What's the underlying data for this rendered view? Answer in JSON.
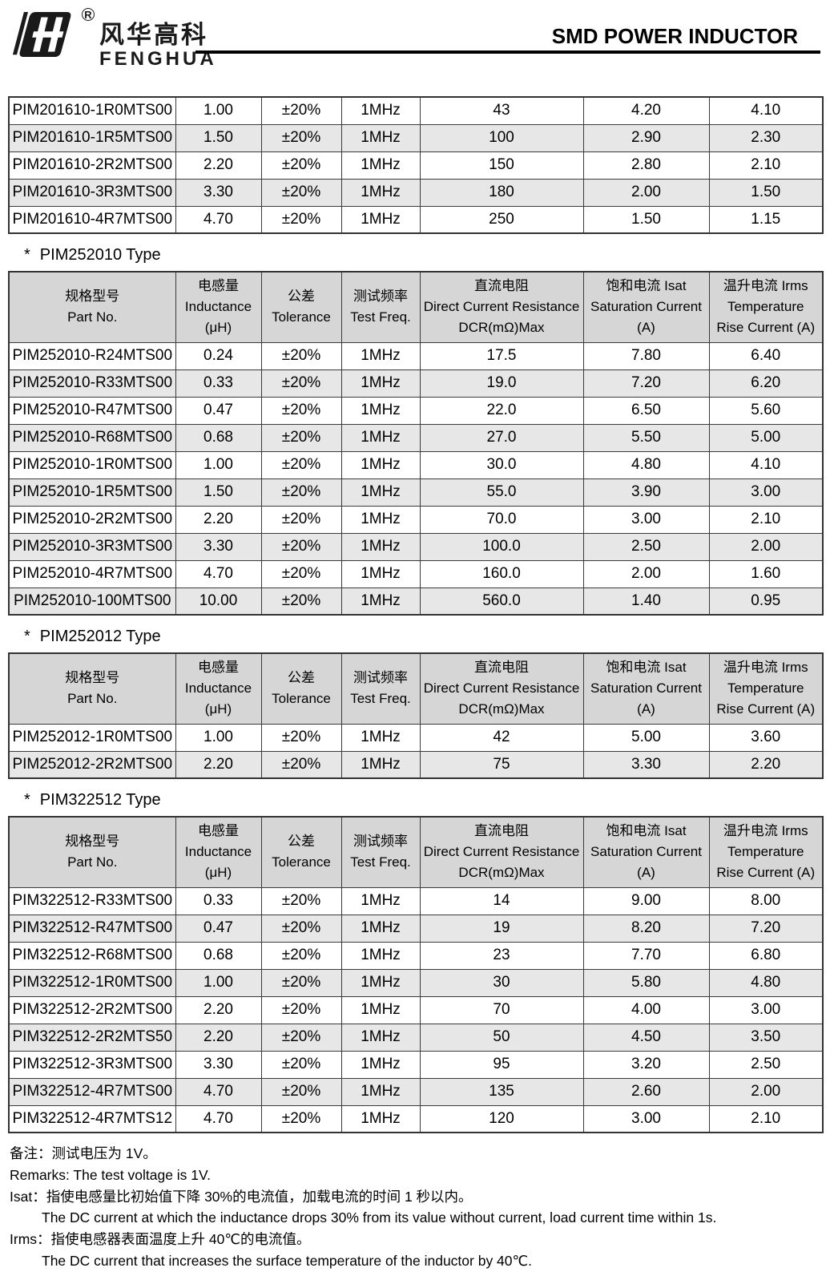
{
  "header": {
    "logo_cn": "风华高科",
    "logo_en": "FENGHUA",
    "registered_mark": "R",
    "title": "SMD POWER INDUCTOR"
  },
  "columns": [
    {
      "cn": "规格型号",
      "en": "Part No.",
      "unit": ""
    },
    {
      "cn": "电感量",
      "en": "Inductance",
      "unit": "(μH)"
    },
    {
      "cn": "公差",
      "en": "Tolerance",
      "unit": ""
    },
    {
      "cn": "测试频率",
      "en": "Test Freq.",
      "unit": ""
    },
    {
      "cn": "直流电阻",
      "en": "Direct Current Resistance",
      "unit": "DCR(mΩ)Max"
    },
    {
      "cn": "饱和电流  Isat",
      "en": "Saturation Current",
      "unit": "(A)"
    },
    {
      "cn": "温升电流  Irms",
      "en": "Temperature",
      "unit": "Rise Current (A)"
    }
  ],
  "tables": [
    {
      "id": "pim201610-continued",
      "heading": null,
      "show_header": false,
      "rows": [
        [
          "PIM201610-1R0MTS00",
          "1.00",
          "±20%",
          "1MHz",
          "43",
          "4.20",
          "4.10"
        ],
        [
          "PIM201610-1R5MTS00",
          "1.50",
          "±20%",
          "1MHz",
          "100",
          "2.90",
          "2.30"
        ],
        [
          "PIM201610-2R2MTS00",
          "2.20",
          "±20%",
          "1MHz",
          "150",
          "2.80",
          "2.10"
        ],
        [
          "PIM201610-3R3MTS00",
          "3.30",
          "±20%",
          "1MHz",
          "180",
          "2.00",
          "1.50"
        ],
        [
          "PIM201610-4R7MTS00",
          "4.70",
          "±20%",
          "1MHz",
          "250",
          "1.50",
          "1.15"
        ]
      ]
    },
    {
      "id": "pim252010",
      "heading": {
        "bullet": "*",
        "title": "PIM252010 Type"
      },
      "show_header": true,
      "rows": [
        [
          "PIM252010-R24MTS00",
          "0.24",
          "±20%",
          "1MHz",
          "17.5",
          "7.80",
          "6.40"
        ],
        [
          "PIM252010-R33MTS00",
          "0.33",
          "±20%",
          "1MHz",
          "19.0",
          "7.20",
          "6.20"
        ],
        [
          "PIM252010-R47MTS00",
          "0.47",
          "±20%",
          "1MHz",
          "22.0",
          "6.50",
          "5.60"
        ],
        [
          "PIM252010-R68MTS00",
          "0.68",
          "±20%",
          "1MHz",
          "27.0",
          "5.50",
          "5.00"
        ],
        [
          "PIM252010-1R0MTS00",
          "1.00",
          "±20%",
          "1MHz",
          "30.0",
          "4.80",
          "4.10"
        ],
        [
          "PIM252010-1R5MTS00",
          "1.50",
          "±20%",
          "1MHz",
          "55.0",
          "3.90",
          "3.00"
        ],
        [
          "PIM252010-2R2MTS00",
          "2.20",
          "±20%",
          "1MHz",
          "70.0",
          "3.00",
          "2.10"
        ],
        [
          "PIM252010-3R3MTS00",
          "3.30",
          "±20%",
          "1MHz",
          "100.0",
          "2.50",
          "2.00"
        ],
        [
          "PIM252010-4R7MTS00",
          "4.70",
          "±20%",
          "1MHz",
          "160.0",
          "2.00",
          "1.60"
        ],
        [
          "PIM252010-100MTS00",
          "10.00",
          "±20%",
          "1MHz",
          "560.0",
          "1.40",
          "0.95"
        ]
      ]
    },
    {
      "id": "pim252012",
      "heading": {
        "bullet": "*",
        "title": "PIM252012 Type"
      },
      "show_header": true,
      "rows": [
        [
          "PIM252012-1R0MTS00",
          "1.00",
          "±20%",
          "1MHz",
          "42",
          "5.00",
          "3.60"
        ],
        [
          "PIM252012-2R2MTS00",
          "2.20",
          "±20%",
          "1MHz",
          "75",
          "3.30",
          "2.20"
        ]
      ]
    },
    {
      "id": "pim322512",
      "heading": {
        "bullet": "*",
        "title": "PIM322512 Type"
      },
      "show_header": true,
      "rows": [
        [
          "PIM322512-R33MTS00",
          "0.33",
          "±20%",
          "1MHz",
          "14",
          "9.00",
          "8.00"
        ],
        [
          "PIM322512-R47MTS00",
          "0.47",
          "±20%",
          "1MHz",
          "19",
          "8.20",
          "7.20"
        ],
        [
          "PIM322512-R68MTS00",
          "0.68",
          "±20%",
          "1MHz",
          "23",
          "7.70",
          "6.80"
        ],
        [
          "PIM322512-1R0MTS00",
          "1.00",
          "±20%",
          "1MHz",
          "30",
          "5.80",
          "4.80"
        ],
        [
          "PIM322512-2R2MTS00",
          "2.20",
          "±20%",
          "1MHz",
          "70",
          "4.00",
          "3.00"
        ],
        [
          "PIM322512-2R2MTS50",
          "2.20",
          "±20%",
          "1MHz",
          "50",
          "4.50",
          "3.50"
        ],
        [
          "PIM322512-3R3MTS00",
          "3.30",
          "±20%",
          "1MHz",
          "95",
          "3.20",
          "2.50"
        ],
        [
          "PIM322512-4R7MTS00",
          "4.70",
          "±20%",
          "1MHz",
          "135",
          "2.60",
          "2.00"
        ],
        [
          "PIM322512-4R7MTS12",
          "4.70",
          "±20%",
          "1MHz",
          "120",
          "3.00",
          "2.10"
        ]
      ]
    }
  ],
  "footer": {
    "lines": [
      {
        "text": "备注：测试电压为 1V。"
      },
      {
        "text": "Remarks: The test voltage is 1V."
      },
      {
        "text": "Isat：指使电感量比初始值下降 30%的电流值，加载电流的时间 1 秒以内。"
      },
      {
        "text": "The DC current at which the inductance drops 30% from its value without current, load current time within 1s."
      },
      {
        "text": "Irms：指使电感器表面温度上升 40℃的电流值。"
      },
      {
        "text": "The DC current that increases the surface temperature of the inductor by 40℃."
      }
    ]
  }
}
